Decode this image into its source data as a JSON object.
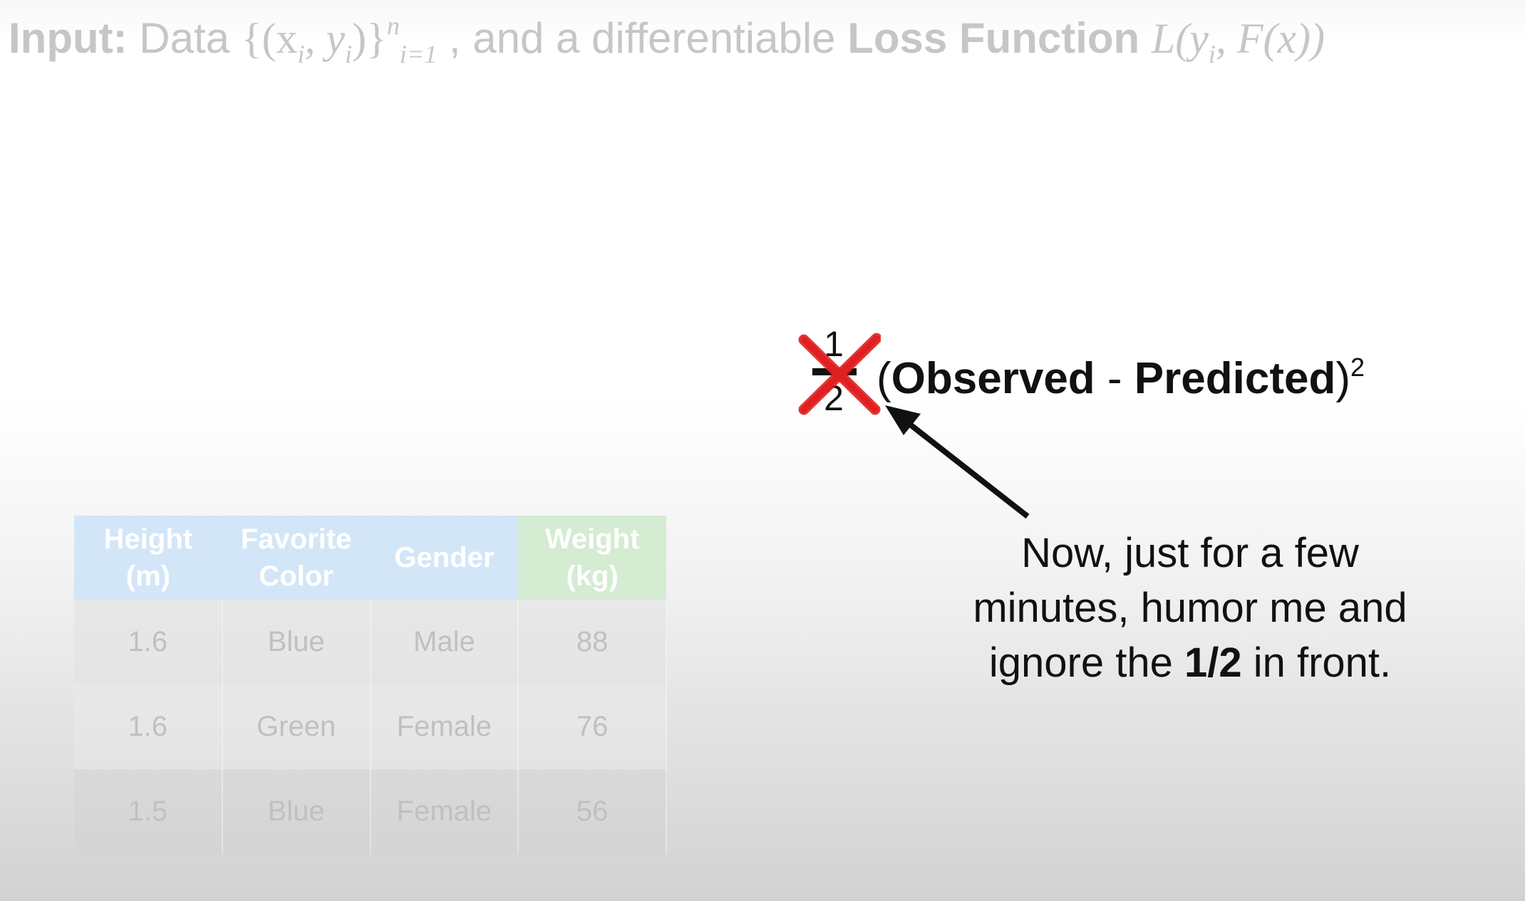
{
  "header": {
    "input_label": "Input:",
    "data_word": "Data",
    "data_set": "{(x",
    "sub_i1": "i",
    "comma_y": ", y",
    "sub_i2": "i",
    "close_set": ")}",
    "sup_n": "n",
    "sub_range": "i=1",
    "mid_text": ", and a differentiable",
    "loss_label": "Loss Function",
    "loss_expr_a": "L(y",
    "loss_sub_i": "i",
    "loss_expr_b": ", F(x))"
  },
  "table": {
    "headers": [
      [
        "Height",
        "(m)"
      ],
      [
        "Favorite",
        "Color"
      ],
      [
        "Gender",
        ""
      ],
      [
        "Weight",
        "(kg)"
      ]
    ],
    "rows": [
      [
        "1.6",
        "Blue",
        "Male",
        "88"
      ],
      [
        "1.6",
        "Green",
        "Female",
        "76"
      ],
      [
        "1.5",
        "Blue",
        "Female",
        "56"
      ]
    ]
  },
  "formula": {
    "numerator": "1",
    "denominator": "2",
    "open_paren": "(",
    "observed": "Observed",
    "minus": " - ",
    "predicted": "Predicted",
    "close_paren": ")",
    "exponent": "2",
    "cross_color": "#e02020"
  },
  "note": {
    "line1": "Now, just for a few",
    "line2": "minutes, humor me and",
    "line3_pre": "ignore the ",
    "line3_bold": "1/2",
    "line3_post": " in front."
  }
}
